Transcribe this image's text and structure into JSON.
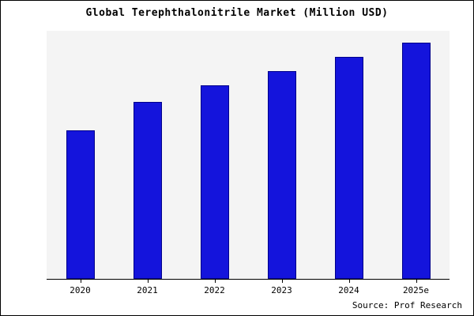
{
  "title": "Global Terephthalonitrile Market (Million USD)",
  "source": "Source: Prof Research",
  "colors": {
    "bar_fill": "#1414dc",
    "bar_border": "#00008b",
    "plot_background": "#f4f4f4",
    "frame_border": "#000000"
  },
  "chart_data": {
    "type": "bar",
    "title": "Global Terephthalonitrile Market (Million USD)",
    "categories": [
      "2020",
      "2021",
      "2022",
      "2023",
      "2024",
      "2025e"
    ],
    "values": [
      63,
      75,
      82,
      88,
      94,
      100
    ],
    "xlabel": "",
    "ylabel": "",
    "ylim": [
      0,
      105
    ],
    "grid": false,
    "legend": false,
    "y_axis_ticks_visible": false,
    "annotation": "Source: Prof Research"
  }
}
